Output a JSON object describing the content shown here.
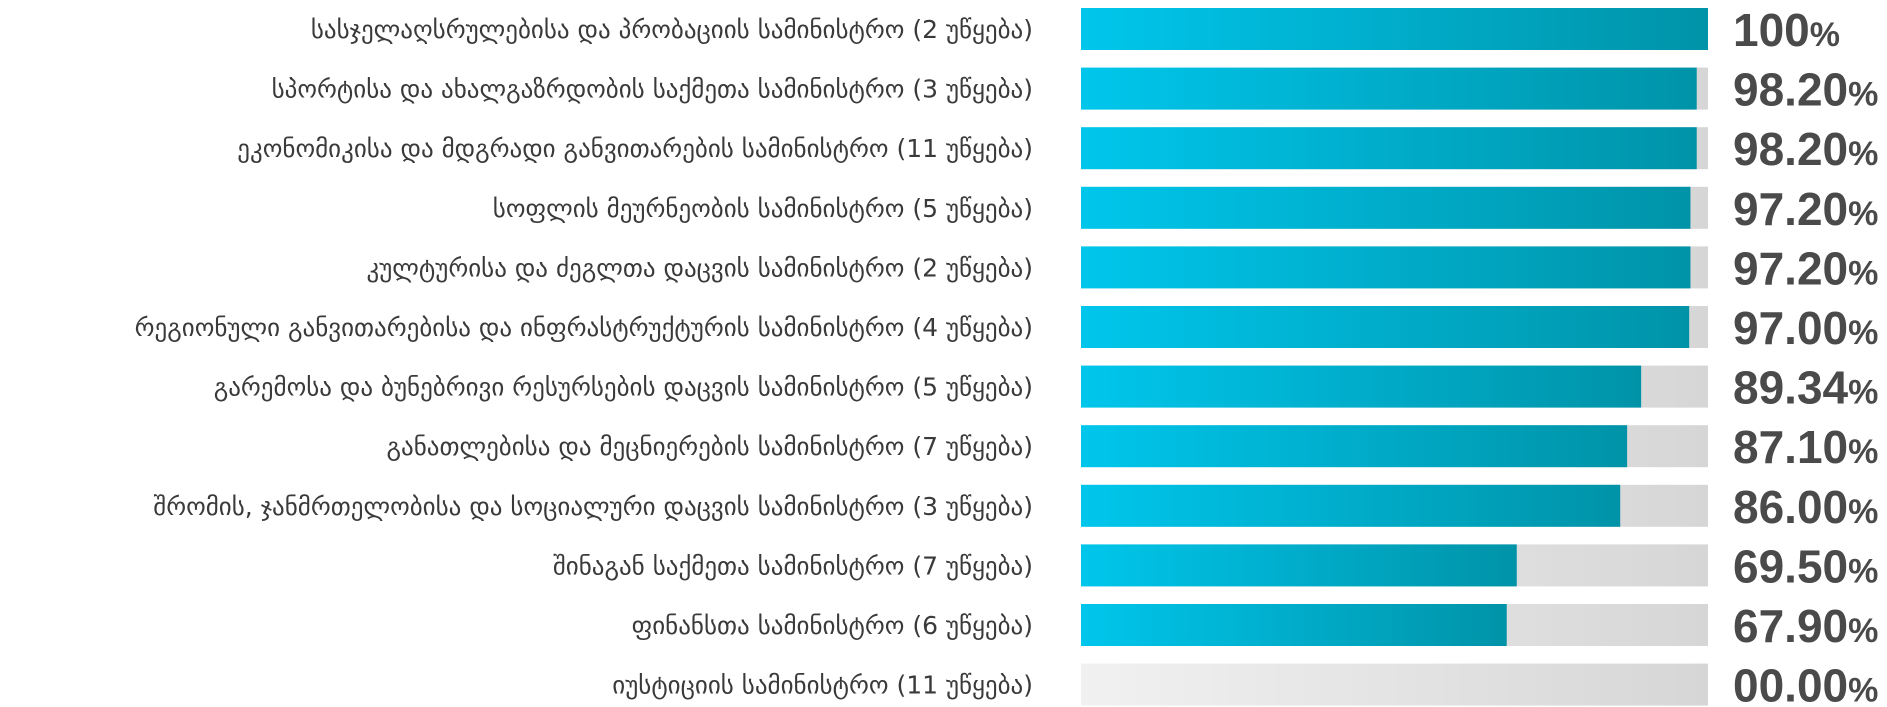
{
  "chart_data": {
    "type": "bar",
    "orientation": "horizontal",
    "categories": [
      "სასჯელაღსრულებისა და პრობაციის სამინისტრო (2 უწყება)",
      "სპორტისა და ახალგაზრდობის საქმეთა სამინისტრო (3 უწყება)",
      "ეკონომიკისა და მდგრადი განვითარების სამინისტრო (11 უწყება)",
      "სოფლის მეურნეობის სამინისტრო (5 უწყება)",
      "კულტურისა და ძეგლთა დაცვის სამინისტრო (2 უწყება)",
      "რეგიონული განვითარებისა და ინფრასტრუქტურის სამინისტრო (4 უწყება)",
      "გარემოსა და ბუნებრივი რესურსების დაცვის სამინისტრო (5 უწყება)",
      "განათლებისა და მეცნიერების სამინისტრო (7 უწყება)",
      "შრომის, ჯანმრთელობისა და სოციალური დაცვის სამინისტრო (3 უწყება)",
      "შინაგან საქმეთა სამინისტრო (7 უწყება)",
      "ფინანსთა სამინისტრო (6 უწყება)",
      "იუსტიციის სამინისტრო (11 უწყება)"
    ],
    "values": [
      100,
      98.2,
      98.2,
      97.2,
      97.2,
      97.0,
      89.34,
      87.1,
      86.0,
      69.5,
      67.9,
      0
    ],
    "value_labels": [
      "100",
      "98.20",
      "98.20",
      "97.20",
      "97.20",
      "97.00",
      "89.34",
      "87.10",
      "86.00",
      "69.50",
      "67.90",
      "00.00"
    ],
    "unit": "%",
    "xlim": [
      0,
      100
    ],
    "title": "",
    "xlabel": "",
    "ylabel": "",
    "grid": false,
    "legend": "none",
    "colors": {
      "bar_start": "#00c6ec",
      "bar_end": "#0093a8",
      "track_start": "#f1f1f1",
      "track_end": "#d6d6d6",
      "label_text": "#3a3a3a",
      "value_text": "#4a4a4a"
    }
  }
}
